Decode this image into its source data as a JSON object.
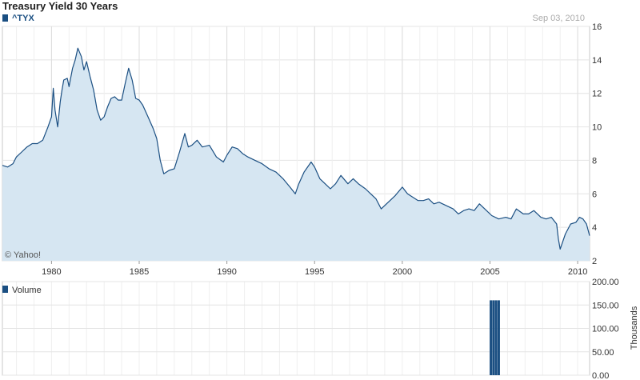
{
  "title": "Treasury Yield 30 Years",
  "date": "Sep 03, 2010",
  "watermark": "© Yahoo!",
  "colors": {
    "line": "#1b4f82",
    "fill": "#d6e6f2",
    "grid": "#e4e4e4",
    "legend_square": "#1b4f82",
    "volume_bar": "#1b4f82"
  },
  "chart_data": [
    {
      "type": "line",
      "legend": "^TYX",
      "x_ticks": [
        "1980",
        "1985",
        "1990",
        "1995",
        "2000",
        "2005",
        "2010"
      ],
      "y_ticks": [
        "2",
        "4",
        "6",
        "8",
        "10",
        "12",
        "14",
        "16"
      ],
      "ylim": [
        2,
        16
      ],
      "xlim": [
        1977.2,
        2010.68
      ],
      "grid": true,
      "fill": true,
      "x": [
        1977.2,
        1977.5,
        1977.8,
        1978.0,
        1978.3,
        1978.6,
        1978.9,
        1979.2,
        1979.5,
        1979.8,
        1980.0,
        1980.1,
        1980.2,
        1980.35,
        1980.5,
        1980.6,
        1980.7,
        1980.9,
        1981.0,
        1981.2,
        1981.35,
        1981.5,
        1981.7,
        1981.85,
        1982.0,
        1982.2,
        1982.4,
        1982.6,
        1982.8,
        1983.0,
        1983.2,
        1983.4,
        1983.6,
        1983.8,
        1984.0,
        1984.2,
        1984.4,
        1984.6,
        1984.8,
        1985.0,
        1985.2,
        1985.5,
        1985.8,
        1986.0,
        1986.2,
        1986.4,
        1986.7,
        1987.0,
        1987.3,
        1987.6,
        1987.8,
        1988.0,
        1988.3,
        1988.6,
        1989.0,
        1989.4,
        1989.8,
        1990.0,
        1990.3,
        1990.6,
        1990.9,
        1991.2,
        1991.6,
        1992.0,
        1992.4,
        1992.8,
        1993.2,
        1993.6,
        1993.9,
        1994.1,
        1994.4,
        1994.8,
        1995.0,
        1995.3,
        1995.6,
        1995.9,
        1996.2,
        1996.5,
        1996.9,
        1997.2,
        1997.5,
        1997.9,
        1998.2,
        1998.5,
        1998.8,
        1999.0,
        1999.3,
        1999.6,
        2000.0,
        2000.3,
        2000.6,
        2000.9,
        2001.2,
        2001.5,
        2001.8,
        2002.1,
        2002.5,
        2002.9,
        2003.2,
        2003.5,
        2003.8,
        2004.1,
        2004.4,
        2004.8,
        2005.1,
        2005.5,
        2005.9,
        2006.2,
        2006.5,
        2006.9,
        2007.2,
        2007.5,
        2007.9,
        2008.2,
        2008.5,
        2008.8,
        2008.9,
        2009.0,
        2009.3,
        2009.6,
        2009.9,
        2010.1,
        2010.3,
        2010.5,
        2010.68
      ],
      "y": [
        7.7,
        7.6,
        7.8,
        8.2,
        8.5,
        8.8,
        9.0,
        9.0,
        9.2,
        10.0,
        10.6,
        12.3,
        11.0,
        10.0,
        11.5,
        12.2,
        12.8,
        12.9,
        12.4,
        13.5,
        14.0,
        14.7,
        14.2,
        13.4,
        13.9,
        13.0,
        12.2,
        11.0,
        10.4,
        10.6,
        11.2,
        11.7,
        11.8,
        11.6,
        11.6,
        12.6,
        13.5,
        12.8,
        11.7,
        11.6,
        11.3,
        10.6,
        9.9,
        9.3,
        8.0,
        7.2,
        7.4,
        7.5,
        8.5,
        9.6,
        8.8,
        8.9,
        9.2,
        8.8,
        8.9,
        8.2,
        7.9,
        8.3,
        8.8,
        8.7,
        8.4,
        8.2,
        8.0,
        7.8,
        7.5,
        7.3,
        6.9,
        6.4,
        6.0,
        6.6,
        7.3,
        7.9,
        7.6,
        6.9,
        6.6,
        6.3,
        6.6,
        7.1,
        6.6,
        6.9,
        6.6,
        6.3,
        6.0,
        5.7,
        5.1,
        5.3,
        5.6,
        5.9,
        6.4,
        6.0,
        5.8,
        5.6,
        5.6,
        5.7,
        5.4,
        5.5,
        5.3,
        5.1,
        4.8,
        5.0,
        5.1,
        5.0,
        5.4,
        5.0,
        4.7,
        4.5,
        4.6,
        4.5,
        5.1,
        4.8,
        4.8,
        5.0,
        4.6,
        4.5,
        4.6,
        4.2,
        3.3,
        2.7,
        3.6,
        4.2,
        4.3,
        4.6,
        4.5,
        4.2,
        3.5
      ]
    },
    {
      "type": "bar",
      "legend": "Volume",
      "ylabel": "Thousands",
      "y_ticks": [
        "0.00",
        "50.00",
        "100.00",
        "150.00",
        "200.00"
      ],
      "ylim": [
        0,
        200
      ],
      "x": [
        2005.05,
        2005.2,
        2005.35,
        2005.5
      ],
      "values": [
        160,
        160,
        160,
        160
      ]
    }
  ]
}
